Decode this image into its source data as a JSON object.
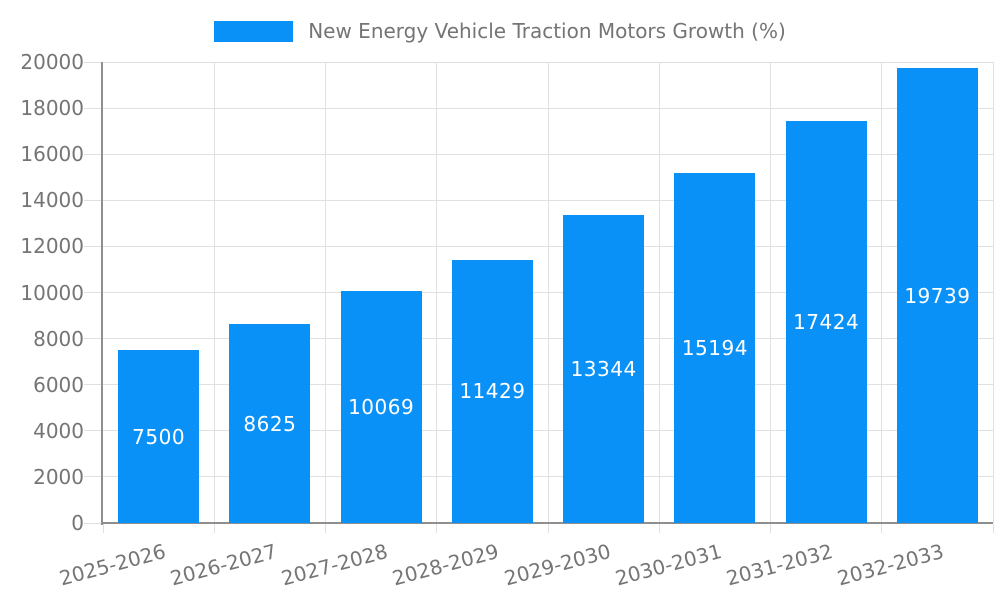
{
  "legend": {
    "label": "New Energy Vehicle Traction Motors Growth (%)"
  },
  "chart_data": {
    "type": "bar",
    "title": "New Energy Vehicle Traction Motors Growth (%)",
    "series_name": "New Energy Vehicle Traction Motors Growth (%)",
    "categories": [
      "2025-2026",
      "2026-2027",
      "2027-2028",
      "2028-2029",
      "2029-2030",
      "2030-2031",
      "2031-2032",
      "2032-2033"
    ],
    "values": [
      7500,
      8625,
      10069,
      11429,
      13344,
      15194,
      17424,
      19739
    ],
    "xlabel": "",
    "ylabel": "",
    "ylim": [
      0,
      20000
    ],
    "ytick_step": 2000,
    "grid": true,
    "legend_position": "top-center",
    "bar_label_position": "inside-center",
    "xtick_rotation_deg": 15
  },
  "colors": {
    "bar": "#0A91F7",
    "axis_line": "#8f8f8f",
    "gridline": "#e0e0e0",
    "tick_label": "#757575",
    "legend_text": "#757575",
    "bar_label": "#ffffff",
    "background": "#ffffff"
  }
}
